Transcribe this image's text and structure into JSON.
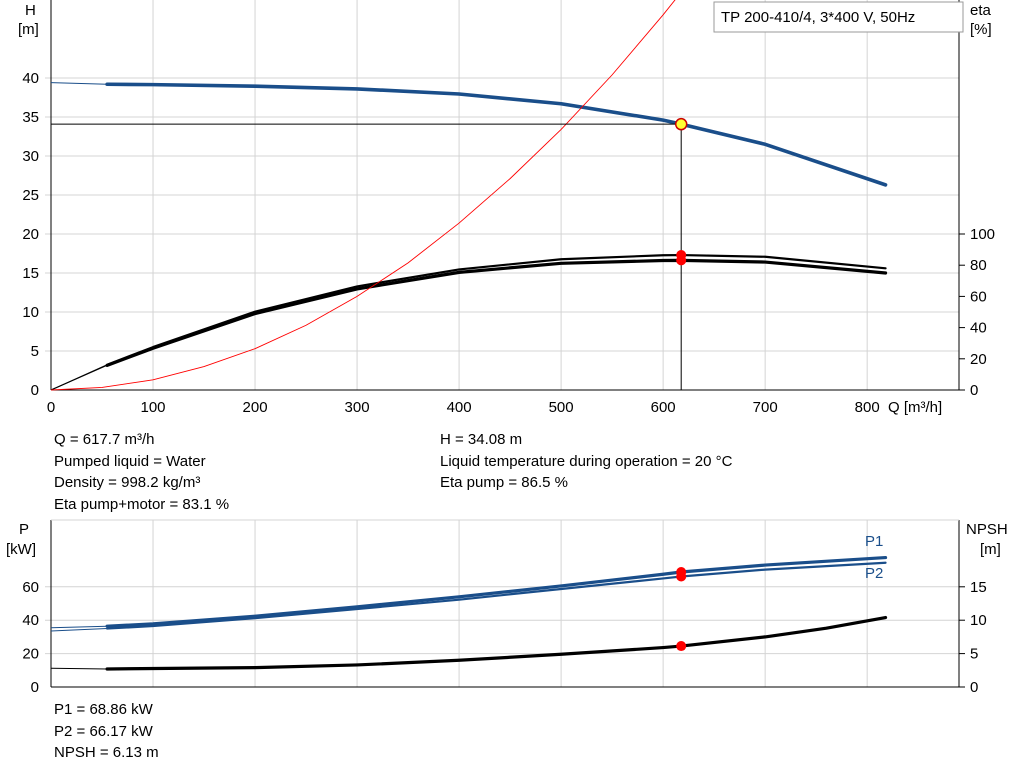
{
  "pump_label": "TP 200-410/4, 3*400 V, 50Hz",
  "chart_data": [
    {
      "type": "line",
      "x_axis": {
        "label": "Q [m³/h]",
        "ticks": [
          0,
          100,
          200,
          300,
          400,
          500,
          600,
          700,
          800
        ],
        "range": [
          0,
          890
        ]
      },
      "y_axis_left": {
        "label": "H",
        "unit": "[m]",
        "ticks": [
          0,
          5,
          10,
          15,
          20,
          25,
          30,
          35,
          40
        ],
        "range": [
          0,
          50
        ]
      },
      "y_axis_right": {
        "label": "eta",
        "unit": "[%]",
        "ticks": [
          0,
          20,
          40,
          60,
          80,
          100
        ],
        "range": [
          0,
          250
        ]
      },
      "grid": true,
      "series": [
        {
          "id": "head",
          "axis": "left",
          "color": "#1a4e8a",
          "x": [
            0,
            55,
            100,
            200,
            300,
            400,
            500,
            600,
            617.7,
            700,
            818
          ],
          "y": [
            39.4,
            39.2,
            39.15,
            38.95,
            38.6,
            37.95,
            36.7,
            34.6,
            34.08,
            31.5,
            26.3
          ]
        },
        {
          "id": "eta_pump",
          "axis": "right",
          "color": "#000000",
          "x": [
            0,
            55,
            100,
            200,
            300,
            400,
            500,
            600,
            617.7,
            700,
            818
          ],
          "y": [
            0,
            16.2,
            27.5,
            50.2,
            66.4,
            77.3,
            83.8,
            86.4,
            86.5,
            85.4,
            78.0
          ]
        },
        {
          "id": "eta_total",
          "axis": "right",
          "color": "#000000",
          "x": [
            0,
            55,
            100,
            200,
            300,
            400,
            500,
            600,
            617.7,
            700,
            818
          ],
          "y": [
            0,
            15.8,
            26.8,
            49.0,
            64.8,
            75.4,
            81.2,
            83.0,
            83.1,
            82.0,
            75.0
          ]
        },
        {
          "id": "system_curve",
          "axis": "left",
          "color": "#ff0000",
          "x": [
            0,
            50,
            100,
            150,
            200,
            250,
            300,
            350,
            400,
            450,
            500,
            550,
            600,
            617.7
          ],
          "y": [
            0,
            0.33,
            1.3,
            3.0,
            5.3,
            8.3,
            12.0,
            16.3,
            21.4,
            27.1,
            33.4,
            40.4,
            48.1,
            51.0
          ]
        }
      ],
      "operating_point": {
        "q": 617.7,
        "h": 34.08
      }
    },
    {
      "type": "line",
      "x_axis": {
        "range": [
          0,
          890
        ]
      },
      "y_axis_left": {
        "label": "P",
        "unit": "[kW]",
        "ticks": [
          0,
          20,
          40,
          60
        ],
        "range": [
          0,
          100
        ]
      },
      "y_axis_right": {
        "label": "NPSH",
        "unit": "[m]",
        "ticks": [
          0,
          5,
          10,
          15
        ],
        "range": [
          0,
          25
        ]
      },
      "grid": true,
      "series": [
        {
          "id": "p1",
          "name": "P1",
          "axis": "left",
          "color": "#1a4e8a",
          "x": [
            0,
            55,
            100,
            200,
            300,
            400,
            500,
            600,
            617.7,
            700,
            818
          ],
          "y": [
            35.5,
            36.4,
            37.8,
            42.4,
            48.0,
            54.0,
            60.5,
            67.5,
            68.86,
            73.0,
            77.5
          ]
        },
        {
          "id": "p2",
          "name": "P2",
          "axis": "left",
          "color": "#1a4e8a",
          "x": [
            0,
            55,
            100,
            200,
            300,
            400,
            500,
            600,
            617.7,
            700,
            818
          ],
          "y": [
            33.5,
            35.0,
            36.5,
            41.2,
            46.7,
            52.3,
            58.7,
            65.0,
            66.17,
            70.3,
            74.4
          ]
        },
        {
          "id": "npsh",
          "axis": "right",
          "color": "#000000",
          "x": [
            0,
            55,
            200,
            300,
            400,
            500,
            600,
            617.7,
            700,
            760,
            818
          ],
          "y": [
            2.8,
            2.7,
            2.9,
            3.3,
            4.0,
            4.9,
            5.9,
            6.13,
            7.5,
            8.8,
            10.4
          ]
        }
      ],
      "operating_point": {
        "q": 617.7
      }
    }
  ],
  "info_head": {
    "q": "Q = 617.7 m³/h",
    "liquid": "Pumped liquid = Water",
    "density": "Density = 998.2 kg/m³",
    "eta_total": "Eta pump+motor = 83.1 %",
    "h": "H = 34.08 m",
    "temp": "Liquid temperature during operation = 20 °C",
    "eta_pump": "Eta pump = 86.5 %"
  },
  "info_power": {
    "p1": "P1 = 68.86 kW",
    "p2": "P2 = 66.17 kW",
    "npsh": "NPSH = 6.13 m"
  }
}
